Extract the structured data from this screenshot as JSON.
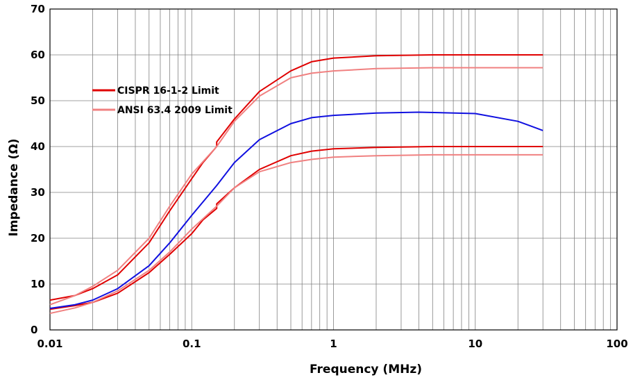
{
  "chart_data": {
    "type": "line",
    "xlabel": "Frequency (MHz)",
    "ylabel": "Impedance (Ω)",
    "x_scale": "log",
    "xlim": [
      0.01,
      100
    ],
    "ylim": [
      0,
      70
    ],
    "x_ticks": [
      "0.01",
      "0.1",
      "1",
      "10",
      "100"
    ],
    "y_ticks": [
      "0",
      "10",
      "20",
      "30",
      "40",
      "50",
      "60",
      "70"
    ],
    "grid": true,
    "legend_position": "upper-left",
    "legend": [
      {
        "label": "CISPR 16-1-2 Limit",
        "color": "#e00000"
      },
      {
        "label": "ANSI 63.4 2009 Limit",
        "color": "#f08080"
      }
    ],
    "series": [
      {
        "name": "CISPR 16-1-2 Limit",
        "color": "#e00000",
        "x": [
          0.01,
          0.015,
          0.02,
          0.03,
          0.05,
          0.07,
          0.1,
          0.12,
          0.15,
          0.15,
          0.2,
          0.3,
          0.5,
          0.7,
          1,
          2,
          5,
          10,
          30
        ],
        "y": [
          6.5,
          7.5,
          9,
          12,
          19,
          26,
          33,
          36.5,
          40,
          41,
          46,
          52,
          56.5,
          58.5,
          59.3,
          59.8,
          60,
          60,
          60
        ]
      },
      {
        "name": "CISPR 16-1-2 Limit",
        "color": "#e00000",
        "x": [
          0.01,
          0.015,
          0.02,
          0.03,
          0.05,
          0.07,
          0.1,
          0.12,
          0.15,
          0.15,
          0.2,
          0.3,
          0.5,
          0.7,
          1,
          2,
          5,
          10,
          30
        ],
        "y": [
          4.5,
          5.3,
          6,
          8,
          12.5,
          16.5,
          21,
          24,
          26.5,
          27.5,
          31,
          35,
          38,
          39,
          39.5,
          39.8,
          40,
          40,
          40
        ]
      },
      {
        "name": "ANSI 63.4 2009 Limit",
        "color": "#f08080",
        "x": [
          0.01,
          0.015,
          0.02,
          0.03,
          0.05,
          0.07,
          0.1,
          0.15,
          0.2,
          0.3,
          0.5,
          0.7,
          1,
          2,
          5,
          10,
          30
        ],
        "y": [
          5.5,
          7.5,
          9.5,
          13,
          20,
          27,
          34,
          40,
          45.5,
          51,
          55,
          56,
          56.5,
          57,
          57.2,
          57.2,
          57.2
        ]
      },
      {
        "name": "ANSI 63.4 2009 Limit",
        "color": "#f08080",
        "x": [
          0.01,
          0.015,
          0.02,
          0.03,
          0.05,
          0.07,
          0.1,
          0.15,
          0.2,
          0.3,
          0.5,
          0.7,
          1,
          2,
          5,
          10,
          30
        ],
        "y": [
          3.6,
          4.8,
          6,
          8.5,
          13,
          17,
          22,
          27,
          31,
          34.5,
          36.5,
          37.2,
          37.7,
          38,
          38.2,
          38.2,
          38.2
        ]
      },
      {
        "name": "",
        "color": "#1010e0",
        "x": [
          0.01,
          0.015,
          0.02,
          0.03,
          0.05,
          0.07,
          0.1,
          0.15,
          0.2,
          0.3,
          0.5,
          0.7,
          1,
          2,
          4,
          10,
          20,
          30
        ],
        "y": [
          4.7,
          5.5,
          6.5,
          9,
          14,
          19,
          25,
          31.5,
          36.5,
          41.5,
          45,
          46.3,
          46.8,
          47.3,
          47.5,
          47.2,
          45.5,
          43.5
        ]
      }
    ]
  }
}
